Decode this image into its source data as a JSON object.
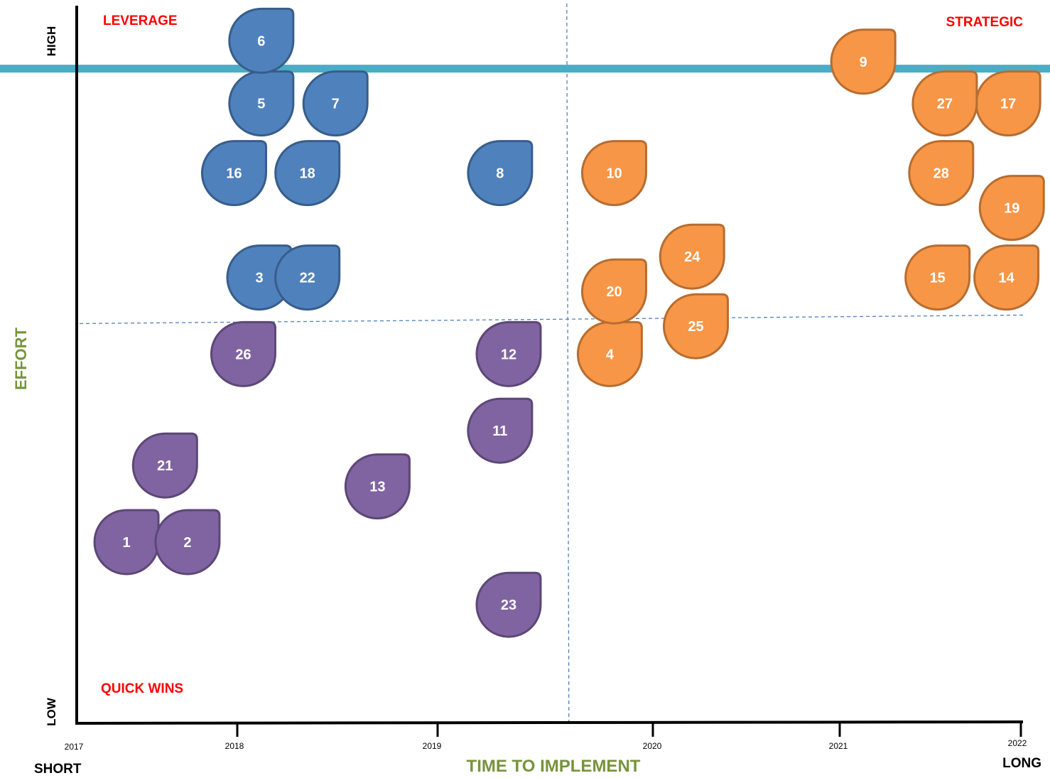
{
  "chart_data": {
    "type": "scatter",
    "title": "",
    "xlabel": "TIME TO IMPLEMENT",
    "ylabel": "EFFORT",
    "x_end_labels": {
      "left": "SHORT",
      "right": "LONG"
    },
    "y_end_labels": {
      "low": "LOW",
      "high": "HIGH"
    },
    "x_ticks": [
      "2017",
      "2018",
      "2019",
      "2020",
      "2021",
      "2022"
    ],
    "xlim": [
      2017,
      2022
    ],
    "ylim": [
      0,
      1
    ],
    "quadrant_labels": {
      "top_left": "LEVERAGE",
      "top_right": "STRATEGIC",
      "bottom_left": "QUICK WINS"
    },
    "divider_x": 2019.6,
    "divider_y": 0.57,
    "reference_line_y": 0.93,
    "colors": {
      "blue": "#4f81bd",
      "blue_stroke": "#385d8a",
      "orange": "#f79646",
      "orange_stroke": "#b66d31",
      "purple": "#8064a2",
      "purple_stroke": "#5c4776",
      "axis_label": "#77933c",
      "quadrant_label": "#ff0000",
      "reference_line": "#4bacc6",
      "divider": "#4f81bd"
    },
    "points": [
      {
        "label": "1",
        "x": 2017.31,
        "y": 0.25,
        "group": "purple"
      },
      {
        "label": "2",
        "x": 2017.69,
        "y": 0.25,
        "group": "purple"
      },
      {
        "label": "3",
        "x": 2018.11,
        "y": 0.63,
        "group": "blue"
      },
      {
        "label": "4",
        "x": 2019.8,
        "y": 0.52,
        "group": "orange"
      },
      {
        "label": "5",
        "x": 2018.12,
        "y": 0.88,
        "group": "blue"
      },
      {
        "label": "6",
        "x": 2018.12,
        "y": 0.97,
        "group": "blue"
      },
      {
        "label": "7",
        "x": 2018.49,
        "y": 0.88,
        "group": "blue"
      },
      {
        "label": "8",
        "x": 2019.29,
        "y": 0.78,
        "group": "blue"
      },
      {
        "label": "9",
        "x": 2021.13,
        "y": 0.94,
        "group": "orange"
      },
      {
        "label": "10",
        "x": 2019.82,
        "y": 0.78,
        "group": "orange"
      },
      {
        "label": "11",
        "x": 2019.29,
        "y": 0.41,
        "group": "purple"
      },
      {
        "label": "12",
        "x": 2019.33,
        "y": 0.52,
        "group": "purple"
      },
      {
        "label": "13",
        "x": 2018.7,
        "y": 0.33,
        "group": "purple"
      },
      {
        "label": "14",
        "x": 2021.92,
        "y": 0.63,
        "group": "orange"
      },
      {
        "label": "15",
        "x": 2021.54,
        "y": 0.63,
        "group": "orange"
      },
      {
        "label": "16",
        "x": 2017.98,
        "y": 0.78,
        "group": "blue"
      },
      {
        "label": "17",
        "x": 2021.93,
        "y": 0.88,
        "group": "orange"
      },
      {
        "label": "18",
        "x": 2018.35,
        "y": 0.78,
        "group": "blue"
      },
      {
        "label": "19",
        "x": 2021.95,
        "y": 0.73,
        "group": "orange"
      },
      {
        "label": "20",
        "x": 2019.82,
        "y": 0.61,
        "group": "orange"
      },
      {
        "label": "21",
        "x": 2017.55,
        "y": 0.36,
        "group": "purple"
      },
      {
        "label": "22",
        "x": 2018.35,
        "y": 0.63,
        "group": "blue"
      },
      {
        "label": "23",
        "x": 2019.33,
        "y": 0.16,
        "group": "purple"
      },
      {
        "label": "24",
        "x": 2020.21,
        "y": 0.66,
        "group": "orange"
      },
      {
        "label": "25",
        "x": 2020.23,
        "y": 0.56,
        "group": "orange"
      },
      {
        "label": "26",
        "x": 2018.03,
        "y": 0.52,
        "group": "purple"
      },
      {
        "label": "27",
        "x": 2021.58,
        "y": 0.88,
        "group": "orange"
      },
      {
        "label": "28",
        "x": 2021.56,
        "y": 0.78,
        "group": "orange"
      }
    ]
  }
}
